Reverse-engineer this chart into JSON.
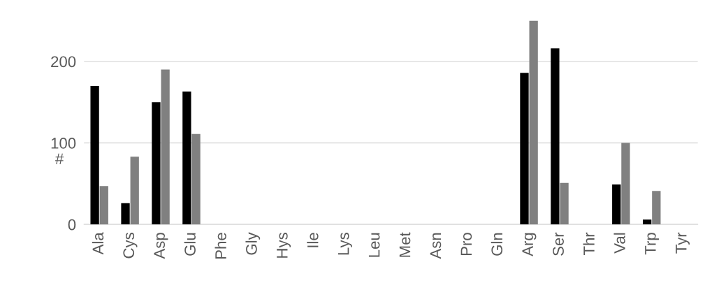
{
  "chart_data": {
    "type": "bar",
    "ylabel": "#",
    "categories": [
      "Ala",
      "Cys",
      "Asp",
      "Glu",
      "Phe",
      "Gly",
      "Hys",
      "Ile",
      "Lys",
      "Leu",
      "Met",
      "Asn",
      "Pro",
      "Gln",
      "Arg",
      "Ser",
      "Thr",
      "Val",
      "Trp",
      "Tyr"
    ],
    "series": [
      {
        "color": "#000000",
        "values": [
          170,
          26,
          150,
          163,
          0,
          0,
          0,
          0,
          0,
          0,
          0,
          0,
          0,
          0,
          186,
          216,
          0,
          49,
          6,
          0
        ]
      },
      {
        "color": "#808080",
        "values": [
          47,
          83,
          190,
          111,
          0,
          0,
          0,
          0,
          0,
          0,
          0,
          0,
          0,
          0,
          250,
          51,
          0,
          100,
          41,
          0
        ]
      }
    ],
    "ylim": [
      0,
      250
    ],
    "yticks": [
      0,
      100,
      200
    ],
    "grid": "y",
    "legend": false
  }
}
